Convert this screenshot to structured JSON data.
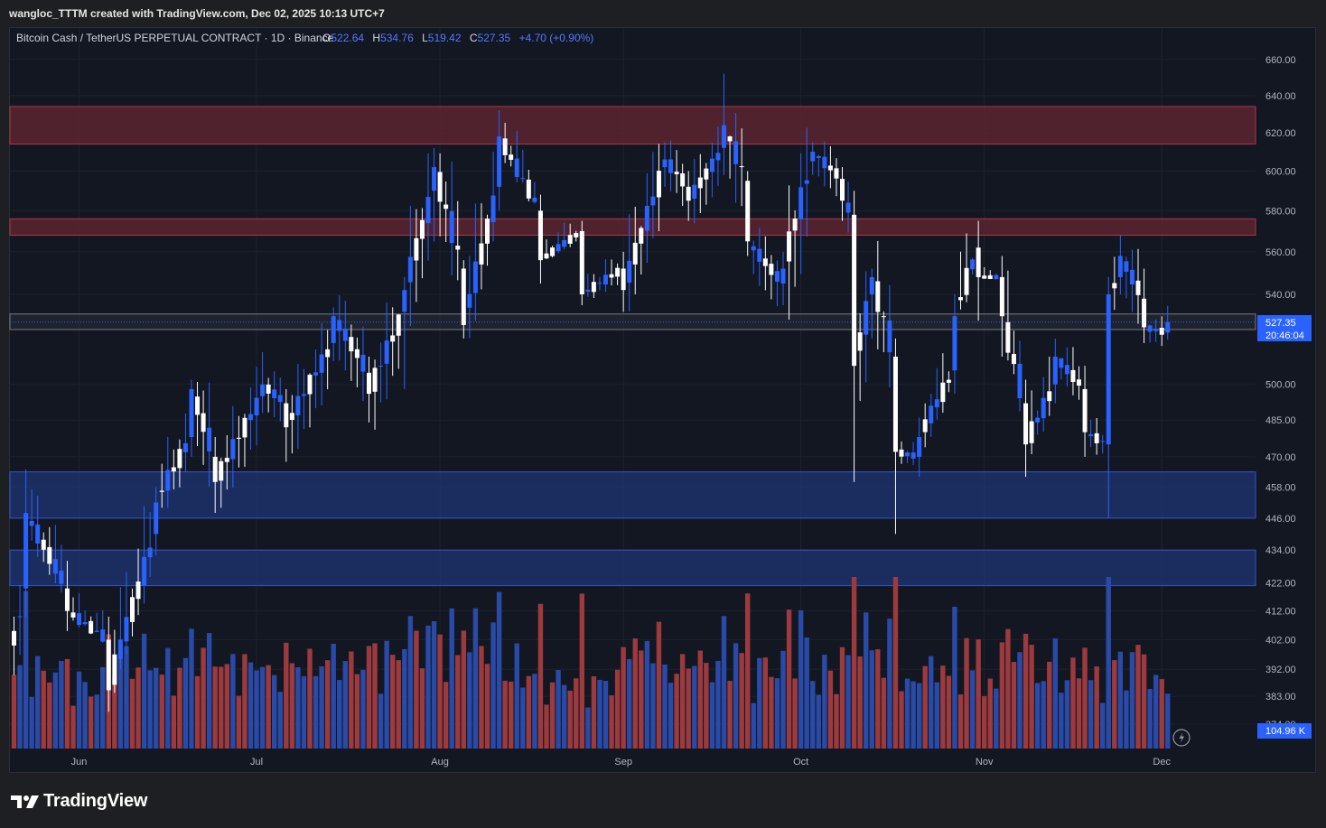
{
  "header": {
    "attribution": "wangloc_TTTM created with TradingView.com, Dec 02, 2025 10:13 UTC+7"
  },
  "legend": {
    "symbol": "Bitcoin Cash / TetherUS PERPETUAL CONTRACT · 1D · Binance",
    "o_label": "O",
    "o_value": "522.64",
    "h_label": "H",
    "h_value": "534.76",
    "l_label": "L",
    "l_value": "519.42",
    "c_label": "C",
    "c_value": "527.35",
    "change": "+4.70 (+0.90%)"
  },
  "price_axis": {
    "ticks": [
      "660.00",
      "640.00",
      "620.00",
      "600.00",
      "580.00",
      "560.00",
      "540.00",
      "500.00",
      "485.00",
      "470.00",
      "458.00",
      "446.00",
      "434.00",
      "422.00",
      "412.00",
      "402.00",
      "392.00",
      "383.00",
      "374.00"
    ],
    "last_price": "527.35",
    "countdown": "20:46:04",
    "volume_label": "104.96 K"
  },
  "time_axis": {
    "labels": [
      "Jun",
      "Jul",
      "Aug",
      "Sep",
      "Oct",
      "Nov",
      "Dec"
    ]
  },
  "colors": {
    "background": "#131722",
    "up": "#2962ff",
    "down": "#ffffff",
    "vol_up": "#2a4aa8",
    "vol_down": "#9c3a3e",
    "resistance": "#5a2530",
    "support": "#1f3574",
    "grid": "#1e222d",
    "axis_text": "#b2b5be"
  },
  "brand": {
    "name": "TradingView"
  },
  "chart_data": {
    "type": "candlestick",
    "interval": "1D",
    "x_range": [
      "2025-05-21",
      "2025-12-02"
    ],
    "y_axis": {
      "scale": "log",
      "range": [
        374,
        662
      ]
    },
    "grid": true,
    "zones": [
      {
        "kind": "resistance",
        "low": 614,
        "high": 634
      },
      {
        "kind": "resistance",
        "low": 568,
        "high": 576
      },
      {
        "kind": "current-range",
        "low": 524,
        "high": 531
      },
      {
        "kind": "support",
        "low": 446,
        "high": 464
      },
      {
        "kind": "support",
        "low": 421,
        "high": 434
      }
    ],
    "anchors": [
      {
        "date": "2025-05-21",
        "open": 405,
        "close": 400,
        "high": 410,
        "low": 390
      },
      {
        "date": "2025-05-23",
        "open": 420,
        "close": 448,
        "high": 465,
        "low": 410
      },
      {
        "date": "2025-05-30",
        "open": 420,
        "close": 412,
        "high": 430,
        "low": 405
      },
      {
        "date": "2025-06-06",
        "open": 402,
        "close": 385,
        "high": 410,
        "low": 378
      },
      {
        "date": "2025-06-14",
        "open": 440,
        "close": 452,
        "high": 458,
        "low": 432
      },
      {
        "date": "2025-06-20",
        "open": 478,
        "close": 498,
        "high": 502,
        "low": 470
      },
      {
        "date": "2025-06-24",
        "open": 470,
        "close": 460,
        "high": 478,
        "low": 448
      },
      {
        "date": "2025-07-02",
        "open": 495,
        "close": 500,
        "high": 514,
        "low": 488
      },
      {
        "date": "2025-07-06",
        "open": 492,
        "close": 482,
        "high": 498,
        "low": 468
      },
      {
        "date": "2025-07-14",
        "open": 518,
        "close": 530,
        "high": 534,
        "low": 510
      },
      {
        "date": "2025-07-20",
        "open": 505,
        "close": 496,
        "high": 512,
        "low": 484
      },
      {
        "date": "2025-07-26",
        "open": 532,
        "close": 542,
        "high": 548,
        "low": 498
      },
      {
        "date": "2025-07-31",
        "open": 590,
        "close": 602,
        "high": 612,
        "low": 565
      },
      {
        "date": "2025-08-05",
        "open": 552,
        "close": 526,
        "high": 556,
        "low": 520
      },
      {
        "date": "2025-08-11",
        "open": 592,
        "close": 618,
        "high": 632,
        "low": 580
      },
      {
        "date": "2025-08-18",
        "open": 580,
        "close": 556,
        "high": 588,
        "low": 545
      },
      {
        "date": "2025-08-25",
        "open": 570,
        "close": 540,
        "high": 575,
        "low": 535
      },
      {
        "date": "2025-09-01",
        "open": 552,
        "close": 542,
        "high": 560,
        "low": 532
      },
      {
        "date": "2025-09-08",
        "open": 602,
        "close": 606,
        "high": 615,
        "low": 592
      },
      {
        "date": "2025-09-12",
        "open": 592,
        "close": 585,
        "high": 600,
        "low": 575
      },
      {
        "date": "2025-09-18",
        "open": 612,
        "close": 624,
        "high": 652,
        "low": 598
      },
      {
        "date": "2025-09-22",
        "open": 595,
        "close": 565,
        "high": 600,
        "low": 558
      },
      {
        "date": "2025-09-28",
        "open": 545,
        "close": 552,
        "high": 560,
        "low": 535
      },
      {
        "date": "2025-10-03",
        "open": 605,
        "close": 610,
        "high": 615,
        "low": 598
      },
      {
        "date": "2025-10-08",
        "open": 596,
        "close": 585,
        "high": 602,
        "low": 575
      },
      {
        "date": "2025-10-10",
        "open": 578,
        "close": 508,
        "high": 590,
        "low": 460
      },
      {
        "date": "2025-10-13",
        "open": 540,
        "close": 548,
        "high": 552,
        "low": 520
      },
      {
        "date": "2025-10-17",
        "open": 512,
        "close": 472,
        "high": 520,
        "low": 440
      },
      {
        "date": "2025-10-21",
        "open": 470,
        "close": 478,
        "high": 486,
        "low": 462
      },
      {
        "date": "2025-10-27",
        "open": 506,
        "close": 530,
        "high": 540,
        "low": 496
      },
      {
        "date": "2025-10-31",
        "open": 562,
        "close": 548,
        "high": 575,
        "low": 528
      },
      {
        "date": "2025-11-04",
        "open": 548,
        "close": 530,
        "high": 558,
        "low": 512
      },
      {
        "date": "2025-11-08",
        "open": 492,
        "close": 475,
        "high": 502,
        "low": 462
      },
      {
        "date": "2025-11-13",
        "open": 500,
        "close": 512,
        "high": 520,
        "low": 492
      },
      {
        "date": "2025-11-18",
        "open": 498,
        "close": 480,
        "high": 508,
        "low": 470
      },
      {
        "date": "2025-11-22",
        "open": 475,
        "close": 540,
        "high": 548,
        "low": 446
      },
      {
        "date": "2025-11-24",
        "open": 548,
        "close": 558,
        "high": 568,
        "low": 540
      },
      {
        "date": "2025-11-28",
        "open": 538,
        "close": 525,
        "high": 552,
        "low": 518
      },
      {
        "date": "2025-12-02",
        "open": 522.64,
        "close": 527.35,
        "high": 534.76,
        "low": 519.42
      }
    ],
    "volume": {
      "last": "104.96 K"
    }
  }
}
